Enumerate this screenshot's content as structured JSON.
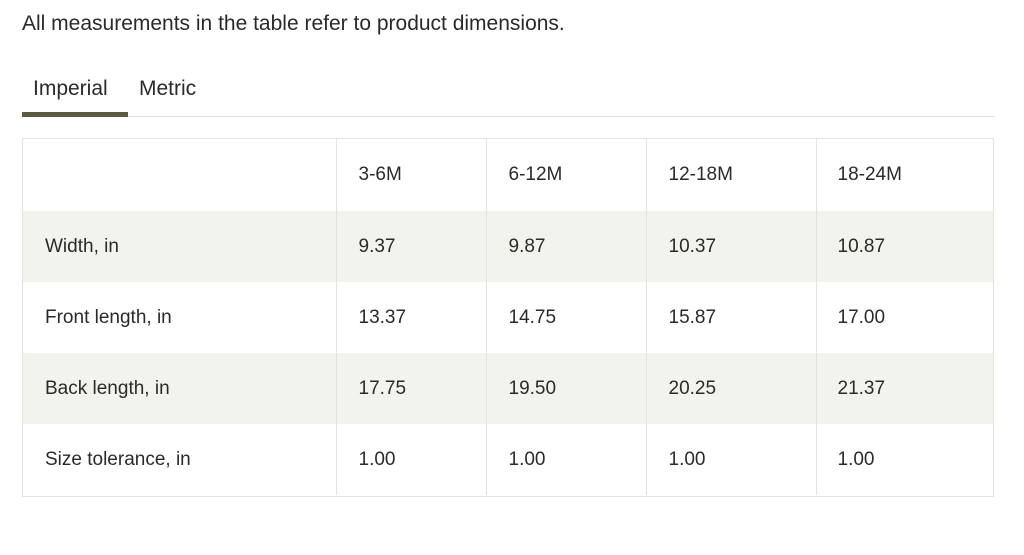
{
  "intro_text": "All measurements in the table refer to product dimensions.",
  "tabs": [
    {
      "label": "Imperial",
      "active": true
    },
    {
      "label": "Metric",
      "active": false
    }
  ],
  "colors": {
    "accent": "#5b5b43",
    "row_shade": "#f3f3ee",
    "border": "#e3e3de"
  },
  "table": {
    "columns": [
      "",
      "3-6M",
      "6-12M",
      "12-18M",
      "18-24M"
    ],
    "rows": [
      {
        "label": "Width, in",
        "values": [
          "9.37",
          "9.87",
          "10.37",
          "10.87"
        ]
      },
      {
        "label": "Front length, in",
        "values": [
          "13.37",
          "14.75",
          "15.87",
          "17.00"
        ]
      },
      {
        "label": "Back length, in",
        "values": [
          "17.75",
          "19.50",
          "20.25",
          "21.37"
        ]
      },
      {
        "label": "Size tolerance, in",
        "values": [
          "1.00",
          "1.00",
          "1.00",
          "1.00"
        ]
      }
    ]
  }
}
